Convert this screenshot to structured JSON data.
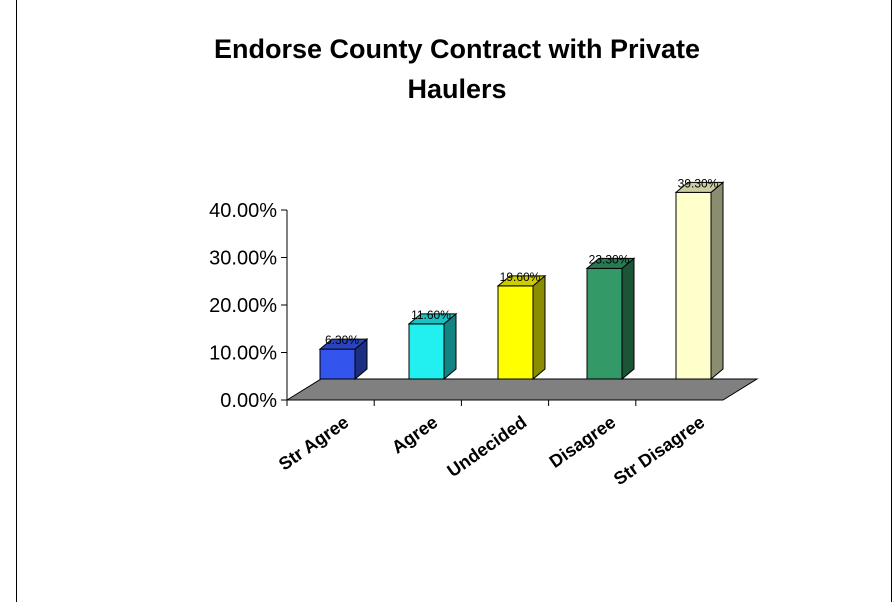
{
  "chart_data": {
    "type": "bar",
    "title": "Endorse County Contract with Private Haulers",
    "title_lines": [
      "Endorse County Contract with Private",
      "Haulers"
    ],
    "categories": [
      "Str Agree",
      "Agree",
      "Undecided",
      "Disagree",
      "Str Disagree"
    ],
    "values": [
      0.063,
      0.116,
      0.196,
      0.233,
      0.393
    ],
    "data_labels": [
      "6.30%",
      "11.60%",
      "19.60%",
      "23.30%",
      "39.30%"
    ],
    "ylim": [
      0,
      0.4
    ],
    "y_ticks": [
      0,
      0.1,
      0.2,
      0.3,
      0.4
    ],
    "y_tick_labels": [
      "0.00%",
      "10.00%",
      "20.00%",
      "30.00%",
      "40.00%"
    ],
    "colors": [
      "#3355ee",
      "#22f0f0",
      "#ffff00",
      "#339966",
      "#ffffcc"
    ],
    "floor_color": "#808080",
    "grid": false,
    "legend": "none",
    "style": "3d-column"
  }
}
